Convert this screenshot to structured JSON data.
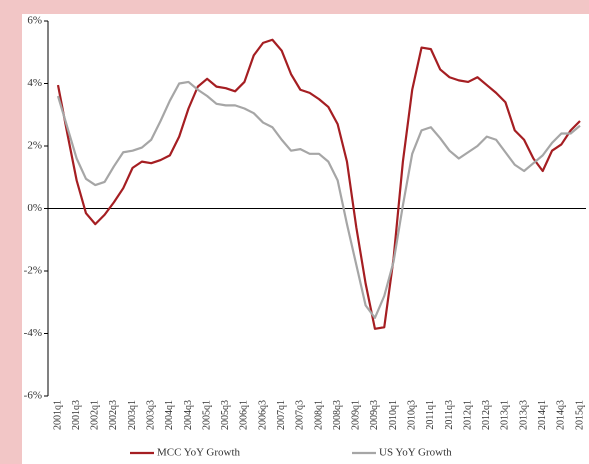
{
  "chart_data": {
    "type": "line",
    "categories": [
      "2001q1",
      null,
      "2001q3",
      null,
      "2002q1",
      null,
      "2002q3",
      null,
      "2003q1",
      null,
      "2003q3",
      null,
      "2004q1",
      null,
      "2004q3",
      null,
      "2005q1",
      null,
      "2005q3",
      null,
      "2006q1",
      null,
      "2006q3",
      null,
      "2007q1",
      null,
      "2007q3",
      null,
      "2008q1",
      null,
      "2008q3",
      null,
      "2009q1",
      null,
      "2009q3",
      null,
      "2010q1",
      null,
      "2010q3",
      null,
      "2011q1",
      null,
      "2011q3",
      null,
      "2012q1",
      null,
      "2012q3",
      null,
      "2013q1",
      null,
      "2013q3",
      null,
      "2014q1",
      null,
      "2014q3",
      null,
      "2015q1"
    ],
    "series": [
      {
        "name": "MCC YoY Growth",
        "color": "#a51e22",
        "values": [
          3.95,
          2.4,
          0.9,
          -0.15,
          -0.5,
          -0.2,
          0.2,
          0.65,
          1.3,
          1.5,
          1.45,
          1.55,
          1.7,
          2.3,
          3.2,
          3.9,
          4.15,
          3.9,
          3.85,
          3.75,
          4.05,
          4.9,
          5.3,
          5.4,
          5.05,
          4.3,
          3.8,
          3.7,
          3.5,
          3.25,
          2.7,
          1.5,
          -0.6,
          -2.4,
          -3.85,
          -3.8,
          -1.6,
          1.5,
          3.8,
          5.15,
          5.1,
          4.45,
          4.2,
          4.1,
          4.05,
          4.2,
          3.95,
          3.7,
          3.4,
          2.5,
          2.2,
          1.6,
          1.2,
          1.85,
          2.05,
          2.5,
          2.8
        ]
      },
      {
        "name": "US YoY Growth",
        "color": "#a6a6a6",
        "values": [
          3.6,
          2.6,
          1.6,
          0.95,
          0.75,
          0.85,
          1.35,
          1.8,
          1.85,
          1.95,
          2.2,
          2.8,
          3.45,
          4.0,
          4.05,
          3.8,
          3.6,
          3.35,
          3.3,
          3.3,
          3.2,
          3.05,
          2.75,
          2.6,
          2.2,
          1.85,
          1.9,
          1.75,
          1.75,
          1.5,
          0.9,
          -0.5,
          -1.8,
          -3.1,
          -3.5,
          -2.8,
          -1.7,
          0.1,
          1.75,
          2.5,
          2.6,
          2.25,
          1.85,
          1.6,
          1.8,
          2.0,
          2.3,
          2.2,
          1.8,
          1.4,
          1.2,
          1.45,
          1.7,
          2.1,
          2.4,
          2.4,
          2.65
        ]
      }
    ],
    "ylim": [
      -6,
      6
    ],
    "yticks": [
      {
        "value": -6,
        "label": "-6%"
      },
      {
        "value": -4,
        "label": "-4%"
      },
      {
        "value": -2,
        "label": "-2%"
      },
      {
        "value": 0,
        "label": "0%"
      },
      {
        "value": 2,
        "label": "2%"
      },
      {
        "value": 4,
        "label": "4%"
      },
      {
        "value": 6,
        "label": "6%"
      }
    ],
    "legend": "bottom"
  }
}
